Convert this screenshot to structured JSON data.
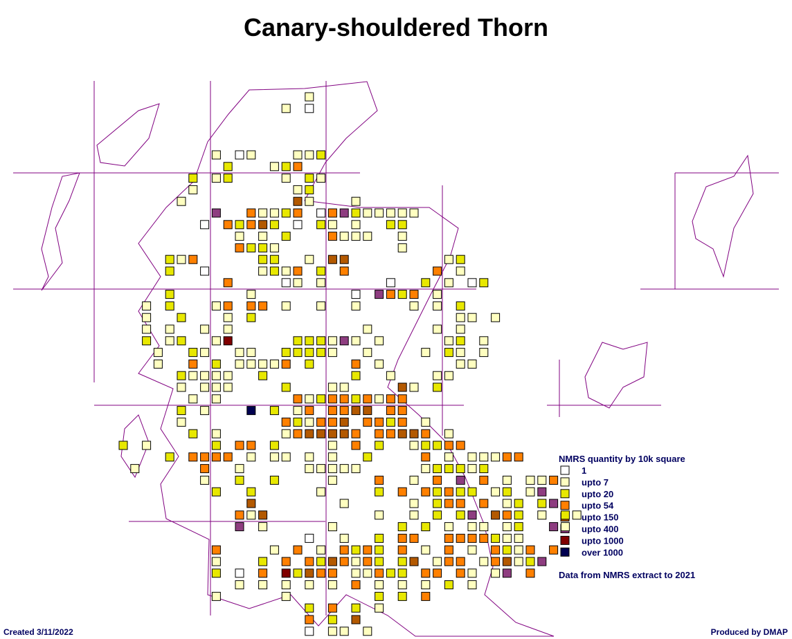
{
  "header": {
    "title": "Canary-shouldered Thorn"
  },
  "legend": {
    "title": "NMRS quantity by 10k square",
    "items": [
      {
        "label": "1",
        "color": "#ffffff"
      },
      {
        "label": "upto 7",
        "color": "#ffffc0"
      },
      {
        "label": "upto 20",
        "color": "#e8e800"
      },
      {
        "label": "upto 54",
        "color": "#ff8000"
      },
      {
        "label": "upto 150",
        "color": "#b35900"
      },
      {
        "label": "upto 400",
        "color": "#8e3d80"
      },
      {
        "label": "upto 1000",
        "color": "#800000"
      },
      {
        "label": "over 1000",
        "color": "#000050"
      }
    ],
    "note": "Data from NMRS extract to 2021"
  },
  "footer": {
    "created": "Created 3/11/2022",
    "produced": "Produced by DMAP"
  }
}
